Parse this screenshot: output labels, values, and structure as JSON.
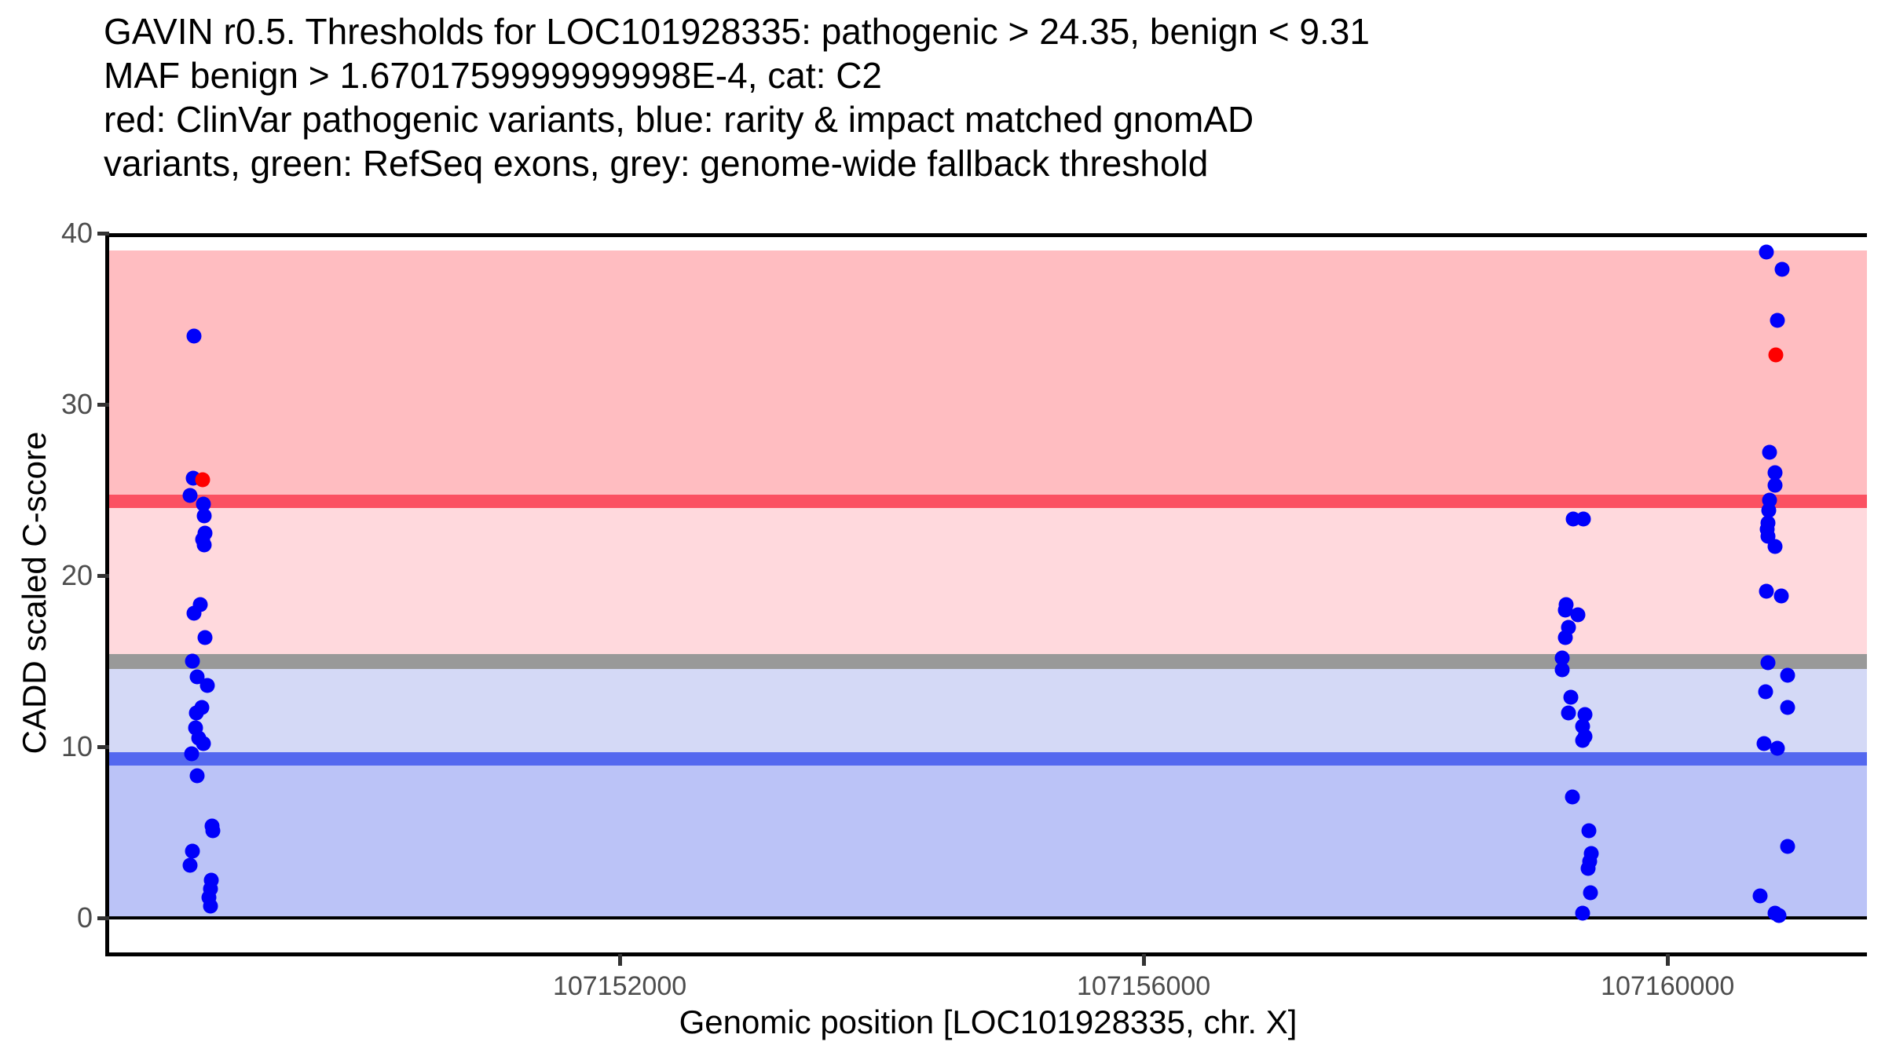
{
  "title": {
    "lines": [
      "GAVIN r0.5. Thresholds for LOC101928335: pathogenic > 24.35, benign < 9.31",
      "MAF benign > 1.6701759999999998E-4, cat: C2",
      "red: ClinVar pathogenic variants, blue: rarity & impact matched gnomAD",
      "variants, green: RefSeq exons, grey: genome-wide fallback threshold"
    ]
  },
  "y_axis": {
    "label": "CADD scaled C-score",
    "ticks": [
      0,
      10,
      20,
      30,
      40
    ],
    "range": [
      -2,
      40
    ]
  },
  "x_axis": {
    "label": "Genomic position [LOC101928335, chr. X]",
    "ticks": [
      {
        "value": 107152000,
        "label": "107152000"
      },
      {
        "value": 107156000,
        "label": "107156000"
      },
      {
        "value": 107160000,
        "label": "107160000"
      }
    ],
    "range": [
      107148102,
      107161522
    ]
  },
  "colors": {
    "point_blue": "#0000FA",
    "point_red": "#FF0000",
    "axis_text": "#4D4D4D",
    "axis_line": "#000000"
  },
  "chart_data": {
    "type": "scatter",
    "title": "GAVIN r0.5. Thresholds for LOC101928335: pathogenic > 24.35, benign < 9.31 MAF benign > 1.6701759999999998E-4, cat: C2",
    "xlabel": "Genomic position [LOC101928335, chr. X]",
    "ylabel": "CADD scaled C-score",
    "xlim": [
      107148102,
      107161522
    ],
    "ylim": [
      -2,
      40
    ],
    "grid": false,
    "legend_position": "none",
    "thresholds": {
      "pathogenic_gt": 24.35,
      "benign_lt": 9.31,
      "maf_benign_gt": "1.6701759999999998E-4",
      "category": "C2",
      "genomewide_fallback": 15
    },
    "bands": [
      {
        "name": "pathogenic-zone",
        "from": 24.35,
        "to": 39,
        "color": "#FFBDC1"
      },
      {
        "name": "vous-upper-zone",
        "from": 15,
        "to": 24.35,
        "color": "#FFD9DD"
      },
      {
        "name": "vous-lower-zone",
        "from": 9.31,
        "to": 15,
        "color": "#D4D9F6"
      },
      {
        "name": "benign-zone",
        "from": 0,
        "to": 9.31,
        "color": "#BBC3F7"
      }
    ],
    "threshold_lines": [
      {
        "name": "top-frame-line",
        "y": 40,
        "color": "#000000",
        "thickness": 5
      },
      {
        "name": "pathogenic-threshold-line",
        "y": 24.35,
        "color": "#FB5162",
        "thickness": 17
      },
      {
        "name": "genomewide-fallback-line",
        "y": 15,
        "color": "#999999",
        "thickness": 19
      },
      {
        "name": "benign-threshold-line",
        "y": 9.31,
        "color": "#5468EF",
        "thickness": 17
      },
      {
        "name": "zero-line",
        "y": 0,
        "color": "#000000",
        "thickness": 4
      }
    ],
    "series": [
      {
        "name": "rarity & impact matched gnomAD variants",
        "color": "#0000FA",
        "points": [
          [
            107148748,
            34.0
          ],
          [
            107148744,
            25.7
          ],
          [
            107148718,
            24.7
          ],
          [
            107148822,
            24.2
          ],
          [
            107148828,
            23.5
          ],
          [
            107148832,
            22.5
          ],
          [
            107148817,
            22.1
          ],
          [
            107148828,
            21.8
          ],
          [
            107148798,
            18.3
          ],
          [
            107148748,
            17.8
          ],
          [
            107148832,
            16.4
          ],
          [
            107148738,
            15.0
          ],
          [
            107148774,
            14.1
          ],
          [
            107148852,
            13.6
          ],
          [
            107148808,
            12.3
          ],
          [
            107148768,
            12.0
          ],
          [
            107148762,
            11.1
          ],
          [
            107148784,
            10.5
          ],
          [
            107148823,
            10.2
          ],
          [
            107148732,
            9.6
          ],
          [
            107148774,
            8.3
          ],
          [
            107148888,
            5.4
          ],
          [
            107148894,
            5.1
          ],
          [
            107148738,
            3.9
          ],
          [
            107148718,
            3.1
          ],
          [
            107148884,
            2.2
          ],
          [
            107148878,
            1.7
          ],
          [
            107148864,
            1.2
          ],
          [
            107148874,
            0.7
          ],
          [
            107159282,
            23.3
          ],
          [
            107159356,
            23.3
          ],
          [
            107159228,
            18.3
          ],
          [
            107159218,
            18.0
          ],
          [
            107159318,
            17.7
          ],
          [
            107159242,
            17.0
          ],
          [
            107159218,
            16.4
          ],
          [
            107159198,
            15.2
          ],
          [
            107159198,
            14.5
          ],
          [
            107159262,
            12.9
          ],
          [
            107159242,
            12.0
          ],
          [
            107159372,
            11.9
          ],
          [
            107159352,
            11.2
          ],
          [
            107159372,
            10.6
          ],
          [
            107159352,
            10.4
          ],
          [
            107159272,
            7.1
          ],
          [
            107159398,
            5.1
          ],
          [
            107159418,
            3.8
          ],
          [
            107159406,
            3.3
          ],
          [
            107159392,
            2.9
          ],
          [
            107159412,
            1.5
          ],
          [
            107159352,
            0.3
          ],
          [
            107160752,
            38.9
          ],
          [
            107160872,
            37.9
          ],
          [
            107160838,
            34.9
          ],
          [
            107160778,
            27.2
          ],
          [
            107160822,
            26.0
          ],
          [
            107160818,
            25.3
          ],
          [
            107160778,
            24.4
          ],
          [
            107160772,
            23.8
          ],
          [
            107160766,
            23.1
          ],
          [
            107160762,
            22.7
          ],
          [
            107160766,
            22.3
          ],
          [
            107160818,
            21.7
          ],
          [
            107160752,
            19.1
          ],
          [
            107160866,
            18.8
          ],
          [
            107160766,
            14.9
          ],
          [
            107160916,
            14.2
          ],
          [
            107160748,
            13.2
          ],
          [
            107160916,
            12.3
          ],
          [
            107160738,
            10.2
          ],
          [
            107160838,
            9.9
          ],
          [
            107160916,
            4.2
          ],
          [
            107160706,
            1.3
          ],
          [
            107160822,
            0.3
          ],
          [
            107160852,
            0.15
          ]
        ]
      },
      {
        "name": "ClinVar pathogenic variants",
        "color": "#FF0000",
        "points": [
          [
            107148817,
            25.6
          ],
          [
            107160826,
            32.9
          ]
        ]
      }
    ]
  }
}
